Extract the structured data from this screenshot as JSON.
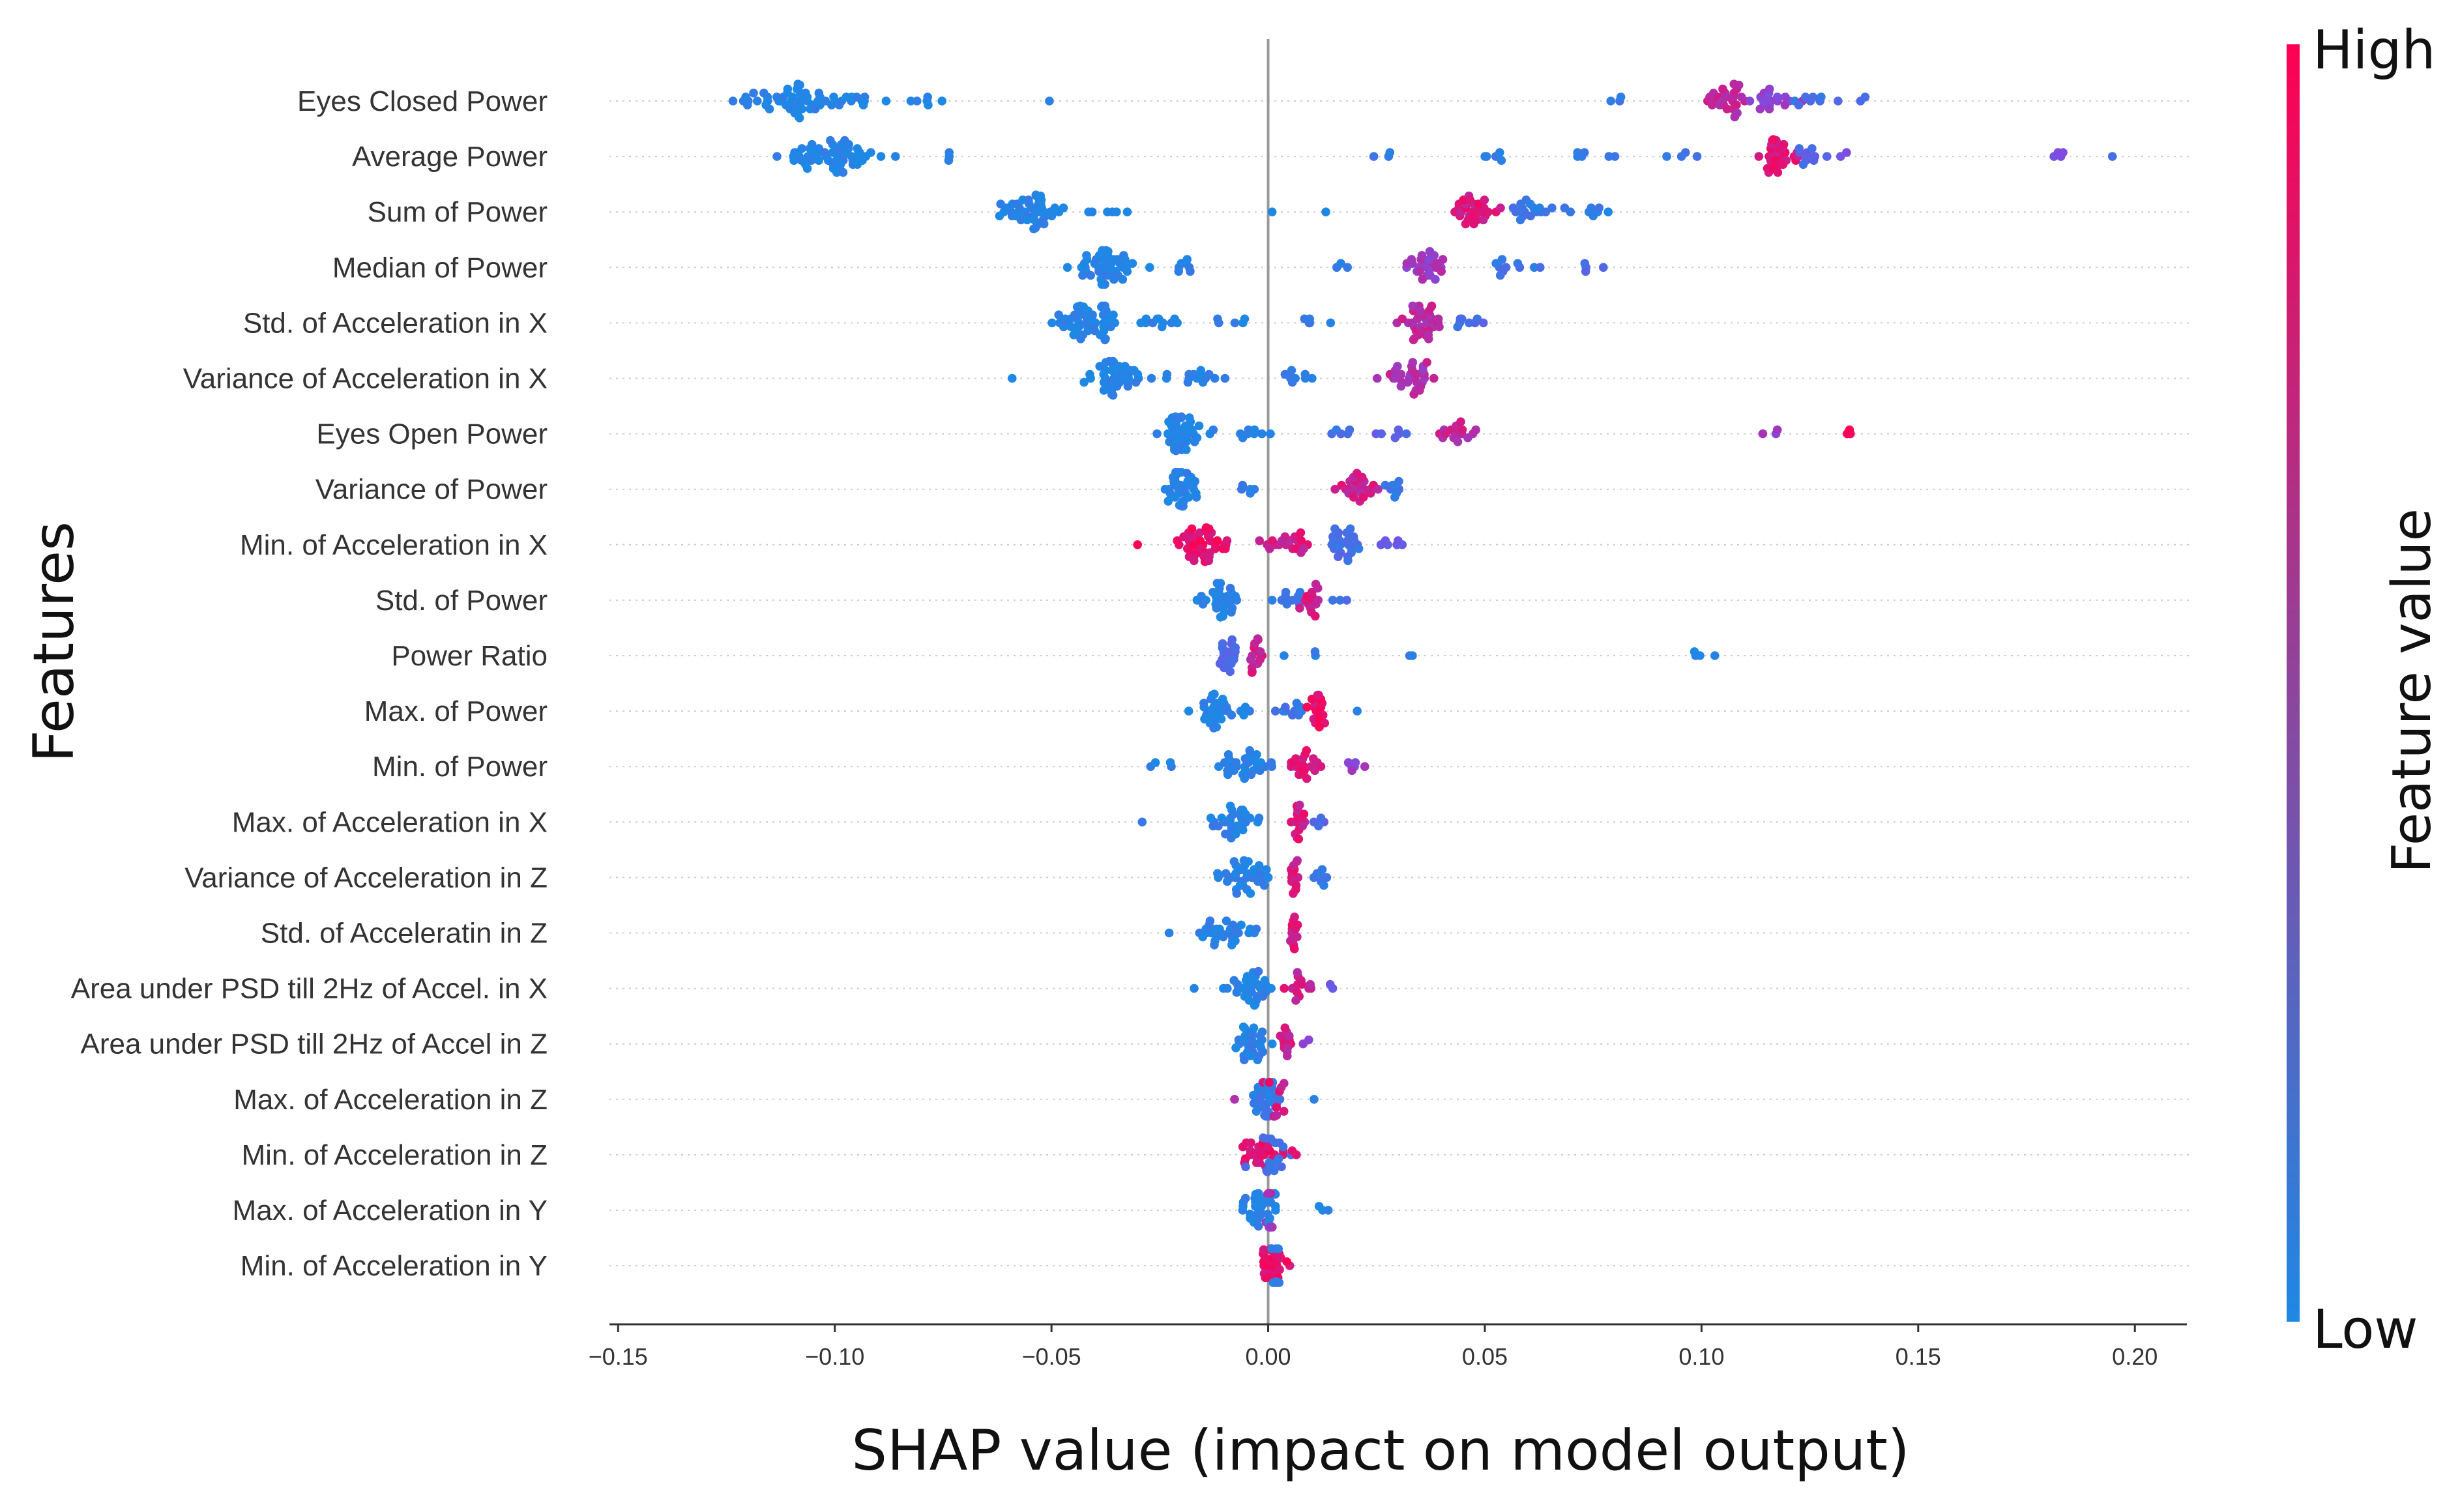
{
  "colors": {
    "low": "#1e88e5",
    "high": "#ff0052",
    "axis": "#333333",
    "zero_line": "#999999",
    "row_line": "#cccccc"
  },
  "chart_data": {
    "type": "scatter",
    "subtype": "shap_beeswarm",
    "xlabel": "SHAP value (impact on model output)",
    "ylabel": "Features",
    "xlim": [
      -0.152,
      0.212
    ],
    "xticks": [
      -0.15,
      -0.1,
      -0.05,
      0.0,
      0.05,
      0.1,
      0.15,
      0.2
    ],
    "xtick_labels": [
      "−0.15",
      "−0.10",
      "−0.05",
      "0.00",
      "0.05",
      "0.10",
      "0.15",
      "0.20"
    ],
    "colorbar": {
      "title": "Feature value",
      "high_label": "High",
      "low_label": "Low"
    },
    "features": [
      {
        "name": "Eyes Closed Power",
        "clusters": [
          {
            "c": -0.106,
            "s": 0.016,
            "n": 60,
            "v": 0.02
          },
          {
            "c": -0.078,
            "s": 0.007,
            "n": 6,
            "v": 0.05
          },
          {
            "c": -0.05,
            "s": 0.0015,
            "n": 1,
            "v": 0.05
          },
          {
            "c": 0.082,
            "s": 0.004,
            "n": 3,
            "v": 0.1
          },
          {
            "c": 0.105,
            "s": 0.006,
            "n": 25,
            "v": 0.75
          },
          {
            "c": 0.116,
            "s": 0.005,
            "n": 18,
            "v": 0.55
          },
          {
            "c": 0.125,
            "s": 0.005,
            "n": 8,
            "v": 0.2
          },
          {
            "c": 0.137,
            "s": 0.0015,
            "n": 2,
            "v": 0.3
          }
        ]
      },
      {
        "name": "Average Power",
        "clusters": [
          {
            "c": -0.1,
            "s": 0.01,
            "n": 55,
            "v": 0.03
          },
          {
            "c": -0.075,
            "s": 0.005,
            "n": 3,
            "v": 0.05
          },
          {
            "c": 0.025,
            "s": 0.005,
            "n": 3,
            "v": 0.1
          },
          {
            "c": 0.05,
            "s": 0.006,
            "n": 5,
            "v": 0.1
          },
          {
            "c": 0.075,
            "s": 0.006,
            "n": 6,
            "v": 0.1
          },
          {
            "c": 0.095,
            "s": 0.006,
            "n": 4,
            "v": 0.1
          },
          {
            "c": 0.118,
            "s": 0.004,
            "n": 30,
            "v": 0.85
          },
          {
            "c": 0.124,
            "s": 0.003,
            "n": 10,
            "v": 0.3
          },
          {
            "c": 0.134,
            "s": 0.002,
            "n": 2,
            "v": 0.5
          },
          {
            "c": 0.183,
            "s": 0.003,
            "n": 4,
            "v": 0.5
          },
          {
            "c": 0.195,
            "s": 0.001,
            "n": 1,
            "v": 0.2
          }
        ]
      },
      {
        "name": "Sum of Power",
        "clusters": [
          {
            "c": -0.054,
            "s": 0.006,
            "n": 45,
            "v": 0.03
          },
          {
            "c": -0.035,
            "s": 0.005,
            "n": 5,
            "v": 0.05
          },
          {
            "c": 0.0,
            "s": 0.001,
            "n": 1,
            "v": 0.05
          },
          {
            "c": 0.013,
            "s": 0.001,
            "n": 1,
            "v": 0.05
          },
          {
            "c": 0.048,
            "s": 0.005,
            "n": 28,
            "v": 0.85
          },
          {
            "c": 0.062,
            "s": 0.007,
            "n": 18,
            "v": 0.15
          },
          {
            "c": 0.076,
            "s": 0.005,
            "n": 6,
            "v": 0.1
          }
        ]
      },
      {
        "name": "Median of Power",
        "clusters": [
          {
            "c": -0.037,
            "s": 0.005,
            "n": 45,
            "v": 0.03
          },
          {
            "c": -0.02,
            "s": 0.004,
            "n": 8,
            "v": 0.05
          },
          {
            "c": 0.018,
            "s": 0.003,
            "n": 3,
            "v": 0.1
          },
          {
            "c": 0.036,
            "s": 0.004,
            "n": 25,
            "v": 0.65
          },
          {
            "c": 0.055,
            "s": 0.008,
            "n": 10,
            "v": 0.15
          },
          {
            "c": 0.075,
            "s": 0.004,
            "n": 4,
            "v": 0.3
          }
        ]
      },
      {
        "name": "Std. of Acceleration in X",
        "clusters": [
          {
            "c": -0.042,
            "s": 0.007,
            "n": 48,
            "v": 0.03
          },
          {
            "c": -0.025,
            "s": 0.006,
            "n": 10,
            "v": 0.05
          },
          {
            "c": -0.008,
            "s": 0.004,
            "n": 5,
            "v": 0.05
          },
          {
            "c": 0.01,
            "s": 0.005,
            "n": 5,
            "v": 0.1
          },
          {
            "c": 0.035,
            "s": 0.005,
            "n": 35,
            "v": 0.75
          },
          {
            "c": 0.045,
            "s": 0.004,
            "n": 8,
            "v": 0.25
          }
        ]
      },
      {
        "name": "Variance of Acceleration in X",
        "clusters": [
          {
            "c": -0.035,
            "s": 0.006,
            "n": 40,
            "v": 0.03
          },
          {
            "c": -0.018,
            "s": 0.008,
            "n": 14,
            "v": 0.05
          },
          {
            "c": 0.008,
            "s": 0.008,
            "n": 8,
            "v": 0.1
          },
          {
            "c": 0.033,
            "s": 0.005,
            "n": 30,
            "v": 0.7
          },
          {
            "c": -0.059,
            "s": 0.001,
            "n": 1,
            "v": 0.05
          }
        ]
      },
      {
        "name": "Eyes Open Power",
        "clusters": [
          {
            "c": -0.02,
            "s": 0.005,
            "n": 38,
            "v": 0.03
          },
          {
            "c": -0.003,
            "s": 0.004,
            "n": 8,
            "v": 0.05
          },
          {
            "c": 0.017,
            "s": 0.004,
            "n": 5,
            "v": 0.2
          },
          {
            "c": 0.03,
            "s": 0.004,
            "n": 6,
            "v": 0.3
          },
          {
            "c": 0.042,
            "s": 0.004,
            "n": 16,
            "v": 0.75
          },
          {
            "c": 0.116,
            "s": 0.002,
            "n": 3,
            "v": 0.6
          },
          {
            "c": 0.134,
            "s": 0.001,
            "n": 3,
            "v": 0.95
          }
        ]
      },
      {
        "name": "Variance of Power",
        "clusters": [
          {
            "c": -0.021,
            "s": 0.004,
            "n": 36,
            "v": 0.03
          },
          {
            "c": -0.005,
            "s": 0.003,
            "n": 5,
            "v": 0.05
          },
          {
            "c": 0.02,
            "s": 0.004,
            "n": 24,
            "v": 0.8
          },
          {
            "c": 0.03,
            "s": 0.004,
            "n": 8,
            "v": 0.15
          }
        ]
      },
      {
        "name": "Min. of Acceleration in X",
        "clusters": [
          {
            "c": -0.03,
            "s": 0.003,
            "n": 1,
            "v": 0.95
          },
          {
            "c": -0.015,
            "s": 0.006,
            "n": 45,
            "v": 0.92
          },
          {
            "c": 0.005,
            "s": 0.006,
            "n": 20,
            "v": 0.82
          },
          {
            "c": 0.018,
            "s": 0.004,
            "n": 25,
            "v": 0.2
          },
          {
            "c": 0.028,
            "s": 0.003,
            "n": 6,
            "v": 0.45
          }
        ]
      },
      {
        "name": "Std. of Power",
        "clusters": [
          {
            "c": -0.012,
            "s": 0.005,
            "n": 30,
            "v": 0.03
          },
          {
            "c": 0.005,
            "s": 0.004,
            "n": 10,
            "v": 0.15
          },
          {
            "c": 0.01,
            "s": 0.002,
            "n": 14,
            "v": 0.85
          },
          {
            "c": 0.017,
            "s": 0.002,
            "n": 3,
            "v": 0.2
          }
        ]
      },
      {
        "name": "Power Ratio",
        "clusters": [
          {
            "c": -0.009,
            "s": 0.002,
            "n": 20,
            "v": 0.25
          },
          {
            "c": -0.003,
            "s": 0.002,
            "n": 14,
            "v": 0.8
          },
          {
            "c": 0.013,
            "s": 0.006,
            "n": 3,
            "v": 0.05
          },
          {
            "c": 0.033,
            "s": 0.001,
            "n": 2,
            "v": 0.05
          },
          {
            "c": 0.1,
            "s": 0.008,
            "n": 4,
            "v": 0.05
          }
        ]
      },
      {
        "name": "Max. of Power",
        "clusters": [
          {
            "c": -0.012,
            "s": 0.006,
            "n": 30,
            "v": 0.03
          },
          {
            "c": 0.005,
            "s": 0.004,
            "n": 10,
            "v": 0.15
          },
          {
            "c": 0.011,
            "s": 0.002,
            "n": 18,
            "v": 0.9
          },
          {
            "c": 0.021,
            "s": 0.001,
            "n": 1,
            "v": 0.05
          }
        ]
      },
      {
        "name": "Min. of Power",
        "clusters": [
          {
            "c": -0.024,
            "s": 0.003,
            "n": 4,
            "v": 0.05
          },
          {
            "c": -0.005,
            "s": 0.006,
            "n": 30,
            "v": 0.05
          },
          {
            "c": 0.009,
            "s": 0.003,
            "n": 20,
            "v": 0.85
          },
          {
            "c": 0.02,
            "s": 0.004,
            "n": 6,
            "v": 0.6
          }
        ]
      },
      {
        "name": "Max. of Acceleration in X",
        "clusters": [
          {
            "c": -0.029,
            "s": 0.001,
            "n": 1,
            "v": 0.05
          },
          {
            "c": -0.008,
            "s": 0.005,
            "n": 30,
            "v": 0.05
          },
          {
            "c": 0.007,
            "s": 0.002,
            "n": 16,
            "v": 0.85
          },
          {
            "c": 0.011,
            "s": 0.002,
            "n": 4,
            "v": 0.3
          }
        ]
      },
      {
        "name": "Variance of Acceleration in Z",
        "clusters": [
          {
            "c": -0.005,
            "s": 0.005,
            "n": 35,
            "v": 0.05
          },
          {
            "c": 0.006,
            "s": 0.001,
            "n": 14,
            "v": 0.85
          },
          {
            "c": 0.012,
            "s": 0.003,
            "n": 8,
            "v": 0.1
          }
        ]
      },
      {
        "name": "Std. of Acceleratin in Z",
        "clusters": [
          {
            "c": -0.023,
            "s": 0.001,
            "n": 1,
            "v": 0.05
          },
          {
            "c": -0.01,
            "s": 0.006,
            "n": 30,
            "v": 0.05
          },
          {
            "c": 0.006,
            "s": 0.001,
            "n": 14,
            "v": 0.85
          }
        ]
      },
      {
        "name": "Area under PSD till 2Hz of Accel. in X",
        "clusters": [
          {
            "c": -0.018,
            "s": 0.001,
            "n": 1,
            "v": 0.05
          },
          {
            "c": -0.005,
            "s": 0.005,
            "n": 30,
            "v": 0.05
          },
          {
            "c": 0.007,
            "s": 0.002,
            "n": 14,
            "v": 0.8
          },
          {
            "c": 0.014,
            "s": 0.001,
            "n": 2,
            "v": 0.45
          }
        ]
      },
      {
        "name": "Area under PSD till 2Hz of Accel in Z",
        "clusters": [
          {
            "c": -0.003,
            "s": 0.004,
            "n": 30,
            "v": 0.05
          },
          {
            "c": 0.004,
            "s": 0.002,
            "n": 12,
            "v": 0.8
          },
          {
            "c": 0.009,
            "s": 0.001,
            "n": 2,
            "v": 0.6
          }
        ]
      },
      {
        "name": "Max. of Acceleration in Z",
        "clusters": [
          {
            "c": -0.008,
            "s": 0.001,
            "n": 1,
            "v": 0.6
          },
          {
            "c": 0.0,
            "s": 0.003,
            "n": 35,
            "v": 0.1
          },
          {
            "c": 0.002,
            "s": 0.002,
            "n": 10,
            "v": 0.85
          },
          {
            "c": 0.01,
            "s": 0.001,
            "n": 1,
            "v": 0.05
          }
        ]
      },
      {
        "name": "Min. of Acceleration in Z",
        "clusters": [
          {
            "c": -0.002,
            "s": 0.004,
            "n": 25,
            "v": 0.9
          },
          {
            "c": 0.001,
            "s": 0.003,
            "n": 16,
            "v": 0.2
          },
          {
            "c": 0.006,
            "s": 0.001,
            "n": 2,
            "v": 0.8
          }
        ]
      },
      {
        "name": "Max. of Acceleration in Y",
        "clusters": [
          {
            "c": -0.002,
            "s": 0.004,
            "n": 32,
            "v": 0.05
          },
          {
            "c": 0.0,
            "s": 0.001,
            "n": 8,
            "v": 0.7
          },
          {
            "c": 0.012,
            "s": 0.002,
            "n": 3,
            "v": 0.05
          }
        ]
      },
      {
        "name": "Min. of Acceleration in Y",
        "clusters": [
          {
            "c": 0.001,
            "s": 0.003,
            "n": 28,
            "v": 0.9
          },
          {
            "c": 0.002,
            "s": 0.001,
            "n": 8,
            "v": 0.1
          }
        ]
      }
    ]
  }
}
